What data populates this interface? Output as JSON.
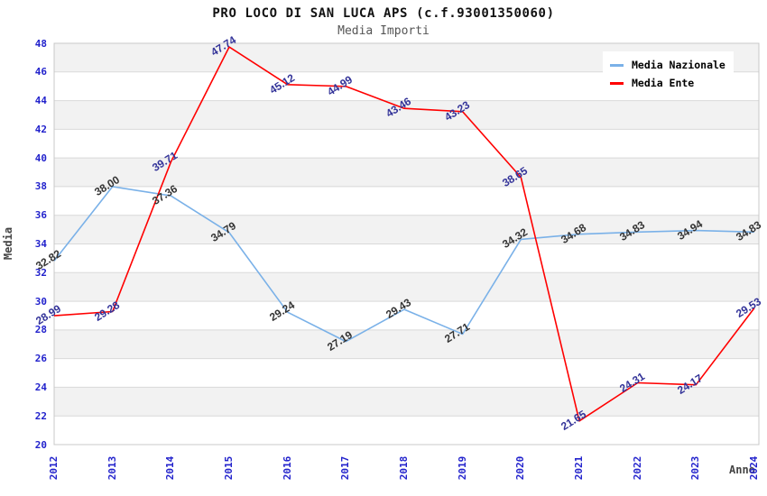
{
  "chart_data": {
    "type": "line",
    "title": "PRO LOCO DI SAN LUCA APS (c.f.93001350060)",
    "subtitle": "Media Importi",
    "xlabel": "Anno",
    "ylabel": "Media",
    "categories": [
      "2012",
      "2013",
      "2014",
      "2015",
      "2016",
      "2017",
      "2018",
      "2019",
      "2020",
      "2021",
      "2022",
      "2023",
      "2024"
    ],
    "series": [
      {
        "name": "Media Nazionale",
        "color": "#7ab1e8",
        "label_color": "#333333",
        "values": [
          32.82,
          38.0,
          37.36,
          34.79,
          29.24,
          27.19,
          29.43,
          27.71,
          34.32,
          34.68,
          34.83,
          34.94,
          34.83
        ]
      },
      {
        "name": "Media Ente",
        "color": "#ff0000",
        "label_color": "#333399",
        "values": [
          28.99,
          29.28,
          39.71,
          47.74,
          45.12,
          44.99,
          43.46,
          43.23,
          38.65,
          21.65,
          24.31,
          24.17,
          29.53
        ]
      }
    ],
    "ylim": [
      20,
      48
    ],
    "y_ticks": [
      20,
      22,
      24,
      26,
      28,
      30,
      32,
      34,
      36,
      38,
      40,
      42,
      44,
      46,
      48
    ],
    "legend_position": "top-right",
    "grid": "horizontal-stripes",
    "colors": {
      "tick_label": "#2222cc",
      "stripe_fill": "#f2f2f2",
      "gridline": "#d9d9d9",
      "plot_border": "#c8c8c8"
    }
  }
}
